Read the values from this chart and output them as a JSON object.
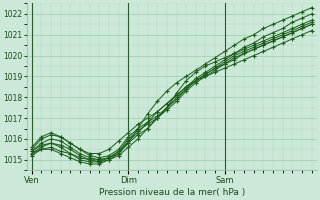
{
  "title": "",
  "xlabel": "Pression niveau de la mer( hPa )",
  "ylabel": "",
  "bg_color": "#cce8d8",
  "grid_color": "#99ccaa",
  "line_color": "#1a5c1a",
  "marker_color": "#1a5c1a",
  "ylim": [
    1014.5,
    1022.5
  ],
  "yticks": [
    1015,
    1016,
    1017,
    1018,
    1019,
    1020,
    1021,
    1022
  ],
  "xtick_labels": [
    "Ven",
    "Dim",
    "Sam"
  ],
  "xtick_positions": [
    0,
    10,
    20
  ],
  "total_points": 30,
  "series": [
    [
      1015.2,
      1015.5,
      1015.6,
      1015.4,
      1015.3,
      1015.1,
      1015.0,
      1015.0,
      1015.1,
      1015.3,
      1015.8,
      1016.5,
      1017.2,
      1017.8,
      1018.3,
      1018.7,
      1019.0,
      1019.3,
      1019.6,
      1019.9,
      1020.2,
      1020.5,
      1020.8,
      1021.0,
      1021.3,
      1021.5,
      1021.7,
      1021.9,
      1022.1,
      1022.3
    ],
    [
      1015.3,
      1015.6,
      1015.8,
      1015.7,
      1015.5,
      1015.2,
      1015.0,
      1014.9,
      1015.0,
      1015.3,
      1015.9,
      1016.3,
      1016.8,
      1017.3,
      1017.7,
      1018.1,
      1018.5,
      1018.9,
      1019.2,
      1019.5,
      1019.8,
      1020.1,
      1020.4,
      1020.6,
      1020.9,
      1021.1,
      1021.3,
      1021.6,
      1021.8,
      1022.0
    ],
    [
      1015.4,
      1015.8,
      1016.0,
      1015.9,
      1015.6,
      1015.3,
      1015.1,
      1015.0,
      1015.1,
      1015.4,
      1016.0,
      1016.4,
      1016.7,
      1017.0,
      1017.4,
      1017.8,
      1018.3,
      1018.7,
      1019.0,
      1019.3,
      1019.6,
      1019.8,
      1020.1,
      1020.3,
      1020.5,
      1020.7,
      1020.9,
      1021.1,
      1021.3,
      1021.5
    ],
    [
      1015.5,
      1016.0,
      1016.2,
      1016.1,
      1015.8,
      1015.5,
      1015.2,
      1015.1,
      1015.2,
      1015.5,
      1016.1,
      1016.5,
      1016.8,
      1017.1,
      1017.5,
      1017.9,
      1018.4,
      1018.8,
      1019.1,
      1019.4,
      1019.6,
      1019.9,
      1020.1,
      1020.3,
      1020.5,
      1020.7,
      1020.9,
      1021.1,
      1021.3,
      1021.5
    ],
    [
      1015.3,
      1015.5,
      1015.5,
      1015.3,
      1015.1,
      1014.9,
      1014.8,
      1014.8,
      1015.0,
      1015.2,
      1015.6,
      1016.0,
      1016.5,
      1017.0,
      1017.5,
      1018.0,
      1018.4,
      1018.8,
      1019.1,
      1019.4,
      1019.7,
      1020.0,
      1020.2,
      1020.4,
      1020.6,
      1020.8,
      1021.0,
      1021.2,
      1021.4,
      1021.6
    ],
    [
      1015.6,
      1016.1,
      1016.3,
      1016.1,
      1015.8,
      1015.5,
      1015.3,
      1015.3,
      1015.5,
      1015.9,
      1016.3,
      1016.7,
      1017.0,
      1017.3,
      1017.7,
      1018.1,
      1018.5,
      1018.8,
      1019.0,
      1019.2,
      1019.4,
      1019.6,
      1019.8,
      1020.0,
      1020.2,
      1020.4,
      1020.6,
      1020.8,
      1021.0,
      1021.2
    ],
    [
      1015.4,
      1015.7,
      1015.8,
      1015.6,
      1015.3,
      1015.0,
      1014.9,
      1014.9,
      1015.1,
      1015.4,
      1015.8,
      1016.2,
      1016.5,
      1017.0,
      1017.5,
      1018.2,
      1018.8,
      1019.2,
      1019.5,
      1019.7,
      1019.9,
      1020.1,
      1020.3,
      1020.5,
      1020.7,
      1020.9,
      1021.1,
      1021.3,
      1021.5,
      1021.7
    ]
  ]
}
